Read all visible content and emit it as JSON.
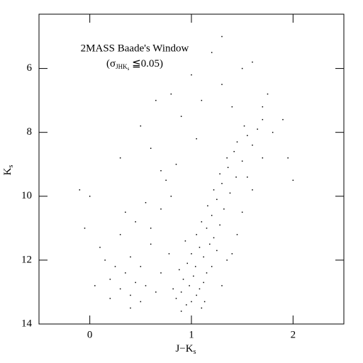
{
  "chart_data": {
    "type": "scatter",
    "title": "2MASS Baade's Window",
    "subtitle": {
      "open": "(σ",
      "sub": "JHK",
      "subsub": "s",
      "close": " ≦0.05)"
    },
    "x_label": {
      "text": "J−K",
      "sub": "s"
    },
    "y_label": {
      "text": "K",
      "sub": "s"
    },
    "color": "#000000",
    "xlim": [
      -0.5,
      2.5
    ],
    "xticks": [
      0,
      1,
      2
    ],
    "ylim": [
      14,
      4.3
    ],
    "yticks": [
      6,
      8,
      10,
      12,
      14
    ],
    "x": [
      0.85,
      0.9,
      0.95,
      1.0,
      1.05,
      1.1,
      0.92,
      0.98,
      1.02,
      1.08,
      1.12,
      0.88,
      0.96,
      1.04,
      1.15,
      1.0,
      1.08,
      1.12,
      1.18,
      0.94,
      1.05,
      1.15,
      1.22,
      1.1,
      1.2,
      1.28,
      1.16,
      1.25,
      1.32,
      1.22,
      1.3,
      1.38,
      1.28,
      1.36,
      1.44,
      1.35,
      1.42,
      1.5,
      1.45,
      1.55,
      1.6,
      1.52,
      1.65,
      1.7,
      0.82,
      1.13,
      0.9,
      1.2,
      1.25,
      0.78,
      0.2,
      0.3,
      0.35,
      0.4,
      0.45,
      0.5,
      0.55,
      0.25,
      0.15,
      0.1,
      0.4,
      0.6,
      0.3,
      0.5,
      0.65,
      0.7,
      0.05,
      0.2,
      0.6,
      0.45,
      0.7,
      0.55,
      0.8,
      0.75,
      0.35,
      0.0,
      -0.05,
      0.85,
      0.7,
      0.6,
      0.9,
      1.1,
      1.3,
      1.5,
      1.2,
      1.7,
      1.8,
      1.4,
      0.8,
      1.0,
      1.6,
      1.75,
      0.5,
      1.9,
      2.0,
      1.95,
      1.3,
      1.05,
      0.65,
      0.3,
      -0.1,
      1.5,
      1.6,
      1.45,
      1.35,
      1.3,
      1.4,
      1.55,
      1.7,
      0.4
    ],
    "values": [
      13.2,
      13.0,
      13.4,
      13.3,
      13.1,
      13.5,
      12.6,
      12.8,
      12.5,
      12.9,
      12.7,
      12.3,
      12.1,
      12.2,
      12.4,
      11.8,
      11.6,
      11.9,
      11.5,
      11.4,
      11.2,
      11.0,
      11.3,
      10.8,
      10.6,
      10.9,
      10.3,
      10.1,
      10.4,
      9.8,
      9.6,
      9.9,
      9.3,
      9.1,
      9.4,
      8.8,
      8.6,
      8.9,
      8.3,
      8.1,
      8.4,
      7.8,
      7.9,
      7.6,
      12.9,
      13.3,
      13.6,
      12.2,
      11.7,
      11.8,
      12.6,
      12.9,
      12.4,
      13.1,
      12.7,
      12.2,
      12.8,
      12.2,
      12.0,
      11.6,
      11.9,
      11.5,
      11.2,
      13.3,
      13.0,
      12.4,
      12.8,
      13.2,
      11.0,
      10.8,
      10.4,
      10.2,
      10.0,
      9.5,
      10.5,
      10.0,
      11.0,
      9.0,
      9.2,
      8.5,
      7.5,
      7.0,
      6.5,
      6.0,
      5.5,
      7.2,
      8.0,
      7.2,
      6.8,
      6.2,
      5.8,
      6.8,
      7.8,
      7.6,
      9.5,
      8.8,
      5.0,
      8.2,
      7.0,
      8.8,
      9.8,
      10.5,
      9.8,
      11.2,
      12.0,
      12.8,
      11.8,
      9.4,
      8.8,
      13.5
    ]
  }
}
